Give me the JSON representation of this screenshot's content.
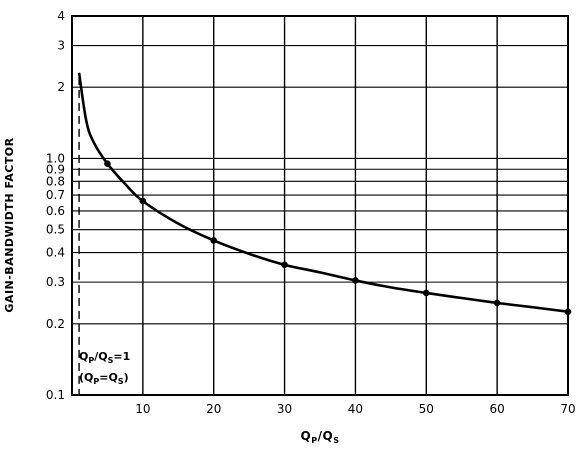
{
  "chart_data": {
    "type": "line",
    "xlabel": {
      "main": "Q",
      "sub1": "P",
      "sep": "/Q",
      "sub2": "S"
    },
    "ylabel": "GAIN-BANDWIDTH FACTOR",
    "xlim": [
      0,
      70
    ],
    "ylim": [
      0.1,
      4
    ],
    "yscale": "log",
    "grid": true,
    "x_ticks": [
      10,
      20,
      30,
      40,
      50,
      60,
      70
    ],
    "y_ticks": [
      {
        "value": 0.1,
        "label": "0.1"
      },
      {
        "value": 0.2,
        "label": "0.2"
      },
      {
        "value": 0.3,
        "label": "0.3"
      },
      {
        "value": 0.4,
        "label": "0.4"
      },
      {
        "value": 0.5,
        "label": "0.5"
      },
      {
        "value": 0.6,
        "label": "0.6"
      },
      {
        "value": 0.7,
        "label": "0.7"
      },
      {
        "value": 0.8,
        "label": "0.8"
      },
      {
        "value": 0.9,
        "label": "0.9"
      },
      {
        "value": 1.0,
        "label": "1.0"
      },
      {
        "value": 2,
        "label": "2"
      },
      {
        "value": 3,
        "label": "3"
      },
      {
        "value": 4,
        "label": "4"
      }
    ],
    "series": [
      {
        "points": [
          {
            "x": 1,
            "y": 2.3
          },
          {
            "x": 2,
            "y": 1.45
          },
          {
            "x": 3,
            "y": 1.18
          },
          {
            "x": 5,
            "y": 0.95
          },
          {
            "x": 7.5,
            "y": 0.78
          },
          {
            "x": 10,
            "y": 0.66
          },
          {
            "x": 15,
            "y": 0.53
          },
          {
            "x": 20,
            "y": 0.45
          },
          {
            "x": 25,
            "y": 0.395
          },
          {
            "x": 30,
            "y": 0.355
          },
          {
            "x": 35,
            "y": 0.33
          },
          {
            "x": 40,
            "y": 0.305
          },
          {
            "x": 45,
            "y": 0.285
          },
          {
            "x": 50,
            "y": 0.27
          },
          {
            "x": 55,
            "y": 0.257
          },
          {
            "x": 60,
            "y": 0.245
          },
          {
            "x": 65,
            "y": 0.235
          },
          {
            "x": 70,
            "y": 0.225
          }
        ],
        "markers": [
          {
            "x": 5,
            "y": 0.95
          },
          {
            "x": 10,
            "y": 0.66
          },
          {
            "x": 20,
            "y": 0.45
          },
          {
            "x": 30,
            "y": 0.355
          },
          {
            "x": 40,
            "y": 0.305
          },
          {
            "x": 50,
            "y": 0.27
          },
          {
            "x": 60,
            "y": 0.245
          },
          {
            "x": 70,
            "y": 0.225
          }
        ]
      }
    ],
    "reference_line": {
      "x": 1,
      "style": "dashed"
    },
    "annotation": {
      "line1": {
        "q1": "Q",
        "s1": "P",
        "mid": "/Q",
        "s2": "S",
        "end": "=1"
      },
      "line2": {
        "open": "(Q",
        "s1": "P",
        "mid": "=Q",
        "s2": "S",
        "close": ")"
      }
    }
  }
}
